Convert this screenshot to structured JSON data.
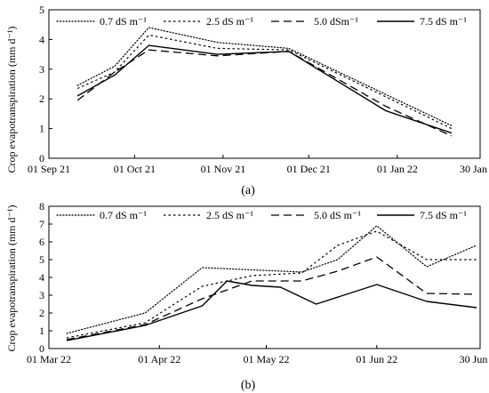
{
  "ylabel": "Crop evapotranspiration (mm d⁻¹)",
  "chart_data": [
    {
      "type": "line",
      "panel_label": "(a)",
      "x_type": "date",
      "xlim": [
        "2021-09-01",
        "2022-01-30"
      ],
      "ylim": [
        0,
        5
      ],
      "yticks": [
        0,
        1,
        2,
        3,
        4,
        5
      ],
      "xticks": [
        {
          "date": "2021-09-01",
          "label": "01 Sep 21"
        },
        {
          "date": "2021-10-01",
          "label": "01 Oct 21"
        },
        {
          "date": "2021-11-01",
          "label": "01 Nov 21"
        },
        {
          "date": "2021-12-01",
          "label": "01 Dec 21"
        },
        {
          "date": "2022-01-01",
          "label": "01 Jan 22"
        },
        {
          "date": "2022-01-30",
          "label": "30 Jan 22"
        }
      ],
      "ylabel": "Crop evapotranspiration (mm d⁻¹)",
      "legend_position": "top",
      "series": [
        {
          "name": "0.7 dS m⁻¹",
          "style": "dotted",
          "x": [
            "2021-09-11",
            "2021-09-24",
            "2021-10-06",
            "2021-10-30",
            "2021-11-24",
            "2022-01-20"
          ],
          "y": [
            2.45,
            3.1,
            4.4,
            3.9,
            3.7,
            1.1
          ]
        },
        {
          "name": "2.5 dS m⁻¹",
          "style": "short-dash",
          "x": [
            "2021-09-11",
            "2021-09-24",
            "2021-10-06",
            "2021-10-30",
            "2021-11-24",
            "2022-01-20"
          ],
          "y": [
            2.35,
            2.9,
            4.15,
            3.7,
            3.65,
            1.0
          ]
        },
        {
          "name": "5.0 dSm⁻¹",
          "style": "long-dash",
          "x": [
            "2021-09-11",
            "2021-09-24",
            "2021-10-06",
            "2021-10-30",
            "2021-11-24",
            "2021-12-28",
            "2022-01-20"
          ],
          "y": [
            1.95,
            2.9,
            3.65,
            3.45,
            3.6,
            1.75,
            0.75
          ]
        },
        {
          "name": "7.5 dS m⁻¹",
          "style": "solid",
          "x": [
            "2021-09-11",
            "2021-09-24",
            "2021-10-06",
            "2021-10-30",
            "2021-11-24",
            "2021-12-28",
            "2022-01-20"
          ],
          "y": [
            2.1,
            2.8,
            3.8,
            3.5,
            3.6,
            1.6,
            0.85
          ]
        }
      ]
    },
    {
      "type": "line",
      "panel_label": "(b)",
      "x_type": "date",
      "xlim": [
        "2022-03-01",
        "2022-06-30"
      ],
      "ylim": [
        0,
        8
      ],
      "yticks": [
        0,
        1,
        2,
        3,
        4,
        5,
        6,
        7,
        8
      ],
      "xticks": [
        {
          "date": "2022-03-01",
          "label": "01 Mar 22"
        },
        {
          "date": "2022-04-01",
          "label": "01 Apr 22"
        },
        {
          "date": "2022-05-01",
          "label": "01 May 22"
        },
        {
          "date": "2022-06-01",
          "label": "01 Jun 22"
        },
        {
          "date": "2022-06-30",
          "label": "30 Jun 22"
        }
      ],
      "ylabel": "Crop evapotranspiration (mm d⁻¹)",
      "legend_position": "top",
      "series": [
        {
          "name": "0.7 dS m⁻¹",
          "style": "dotted",
          "x": [
            "2022-03-06",
            "2022-03-28",
            "2022-04-13",
            "2022-05-11",
            "2022-05-21",
            "2022-06-01",
            "2022-06-15",
            "2022-06-29"
          ],
          "y": [
            0.85,
            2.0,
            4.55,
            4.3,
            5.0,
            6.9,
            4.6,
            5.8
          ]
        },
        {
          "name": "2.5 dS m⁻¹",
          "style": "short-dash",
          "x": [
            "2022-03-06",
            "2022-03-28",
            "2022-04-13",
            "2022-04-27",
            "2022-05-11",
            "2022-05-21",
            "2022-06-01",
            "2022-06-15",
            "2022-06-29"
          ],
          "y": [
            0.6,
            1.45,
            3.5,
            4.1,
            4.25,
            5.8,
            6.6,
            5.0,
            5.0
          ]
        },
        {
          "name": "5.0 dS m⁻¹",
          "style": "long-dash",
          "x": [
            "2022-03-06",
            "2022-03-28",
            "2022-04-13",
            "2022-04-27",
            "2022-05-11",
            "2022-05-21",
            "2022-06-01",
            "2022-06-15",
            "2022-06-29"
          ],
          "y": [
            0.5,
            1.35,
            2.8,
            3.8,
            3.8,
            4.35,
            5.15,
            3.1,
            3.05
          ]
        },
        {
          "name": "7.5 dS m⁻¹",
          "style": "solid",
          "x": [
            "2022-03-06",
            "2022-03-28",
            "2022-04-13",
            "2022-04-20",
            "2022-04-27",
            "2022-05-05",
            "2022-05-15",
            "2022-06-01",
            "2022-06-15",
            "2022-06-29"
          ],
          "y": [
            0.45,
            1.3,
            2.4,
            3.8,
            3.55,
            3.45,
            2.5,
            3.6,
            2.65,
            2.3
          ]
        }
      ]
    }
  ]
}
